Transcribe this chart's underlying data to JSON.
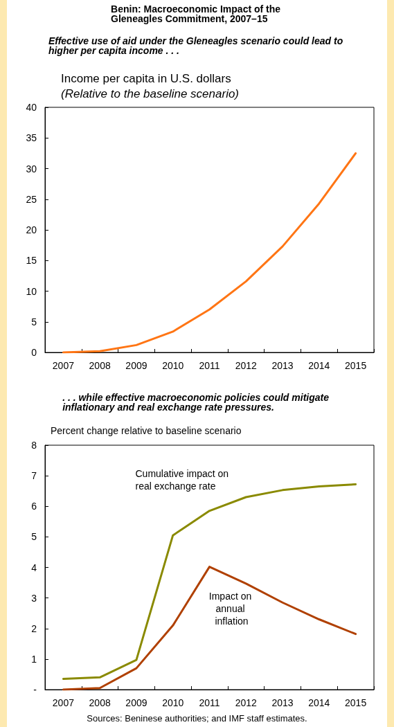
{
  "chart_data": [
    {
      "type": "line",
      "title": "Benin: Macroeconomic Impact of the Gleneagles Commitment, 2007–15",
      "subtitle": "Effective use of aid under the Gleneagles scenario could lead to higher per capita income . . .",
      "ylabel": "Income per capita in U.S. dollars",
      "annotations": [
        "(Relative to the baseline scenario)"
      ],
      "categories": [
        "2007",
        "2008",
        "2009",
        "2010",
        "2011",
        "2012",
        "2013",
        "2014",
        "2015"
      ],
      "series": [
        {
          "color": "#ff7514",
          "values": [
            0,
            0.2,
            1.2,
            3.4,
            7.0,
            11.6,
            17.3,
            24.3,
            32.5
          ]
        }
      ],
      "ylim": [
        0,
        40
      ],
      "yticks": [
        0,
        5,
        10,
        15,
        20,
        25,
        30,
        35,
        40
      ],
      "marker": "none"
    },
    {
      "type": "line",
      "subtitle": ". . . while effective macroeconomic policies could mitigate inflationary and real exchange rate pressures.",
      "ylabel": "Percent change relative to baseline scenario",
      "annotations": [
        "Sources: Beninese authorities; and IMF staff estimates."
      ],
      "categories": [
        "2007",
        "2008",
        "2009",
        "2010",
        "2011",
        "2012",
        "2013",
        "2014",
        "2015"
      ],
      "series": [
        {
          "name": "Cumulative impact on real exchange rate",
          "color": "#8a8a00",
          "values": [
            0.35,
            0.4,
            0.97,
            5.05,
            5.85,
            6.3,
            6.53,
            6.65,
            6.72
          ]
        },
        {
          "name": "Impact on annual inflation",
          "color": "#b04000",
          "values": [
            0.0,
            0.05,
            0.7,
            2.1,
            4.02,
            3.47,
            2.85,
            2.3,
            1.82
          ]
        }
      ],
      "ylim": [
        0,
        8
      ],
      "yticks": [
        {
          "value": 0,
          "label": "-"
        },
        1,
        2,
        3,
        4,
        5,
        6,
        7,
        8
      ],
      "marker": "none"
    }
  ]
}
